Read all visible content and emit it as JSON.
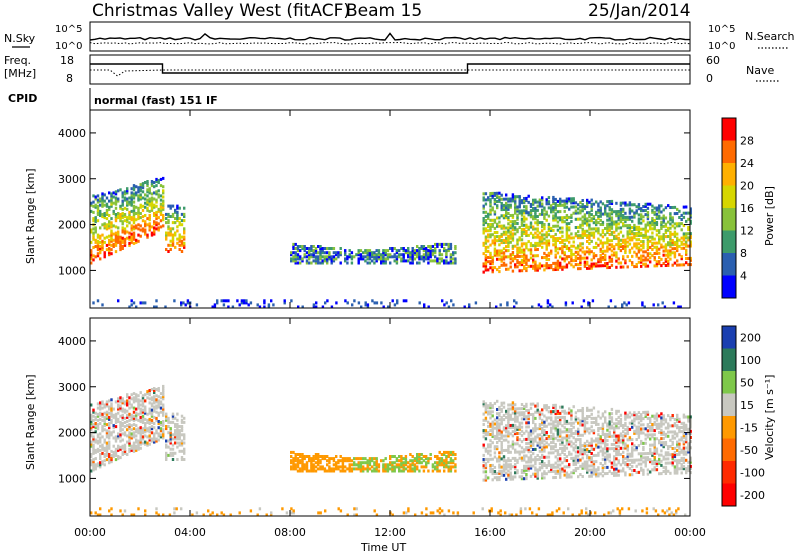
{
  "header": {
    "station": "Christmas Valley West (fitACF)",
    "beam": "Beam 15",
    "date": "25/Jan/2014"
  },
  "panels": {
    "nsky_label": "N.Sky",
    "nsky_ticks": [
      "10^5",
      "10^0"
    ],
    "nsearch_label": "N.Search",
    "nsearch_ticks": [
      "10^5",
      "10^0"
    ],
    "freq_label_1": "Freq.",
    "freq_label_2": "[MHz]",
    "freq_ticks": [
      "18",
      "8"
    ],
    "nave_label": "Nave",
    "nave_ticks": [
      "60",
      "0"
    ],
    "cpid_label": "CPID",
    "cpid_text": "normal (fast) 151 IF"
  },
  "chart_data": [
    {
      "type": "heatmap",
      "name": "power-panel",
      "ylabel": "Slant Range [km]",
      "yticks": [
        "4000",
        "3000",
        "2000",
        "1000"
      ],
      "ylim": [
        180,
        4500
      ],
      "xticks": [
        "00:00",
        "04:00",
        "08:00",
        "12:00",
        "16:00",
        "20:00",
        "00:00"
      ],
      "xlim_hours": [
        0,
        24
      ],
      "colorbar": {
        "label": "Power [dB]",
        "ticks": [
          "28",
          "24",
          "20",
          "16",
          "12",
          "8",
          "4"
        ],
        "colors": [
          "#ff0000",
          "#ff6a00",
          "#ffb000",
          "#d6d600",
          "#88c23a",
          "#3d9b6b",
          "#2a5fb0",
          "#0000ff"
        ]
      }
    },
    {
      "type": "heatmap",
      "name": "velocity-panel",
      "ylabel": "Slant Range [km]",
      "yticks": [
        "4000",
        "3000",
        "2000",
        "1000"
      ],
      "ylim": [
        180,
        4500
      ],
      "xticks": [
        "00:00",
        "04:00",
        "08:00",
        "12:00",
        "16:00",
        "20:00",
        "00:00"
      ],
      "xlim_hours": [
        0,
        24
      ],
      "xlabel": "Time UT",
      "colorbar": {
        "label": "Velocity [m s⁻¹]",
        "ticks": [
          "200",
          "100",
          "50",
          "15",
          "-15",
          "-50",
          "-100",
          "-200"
        ],
        "colors": [
          "#1a3fb0",
          "#2c7a5a",
          "#7ec84a",
          "#c8c8c0",
          "#ff9900",
          "#ff6a00",
          "#ff2a00",
          "#ff0000"
        ]
      }
    }
  ]
}
